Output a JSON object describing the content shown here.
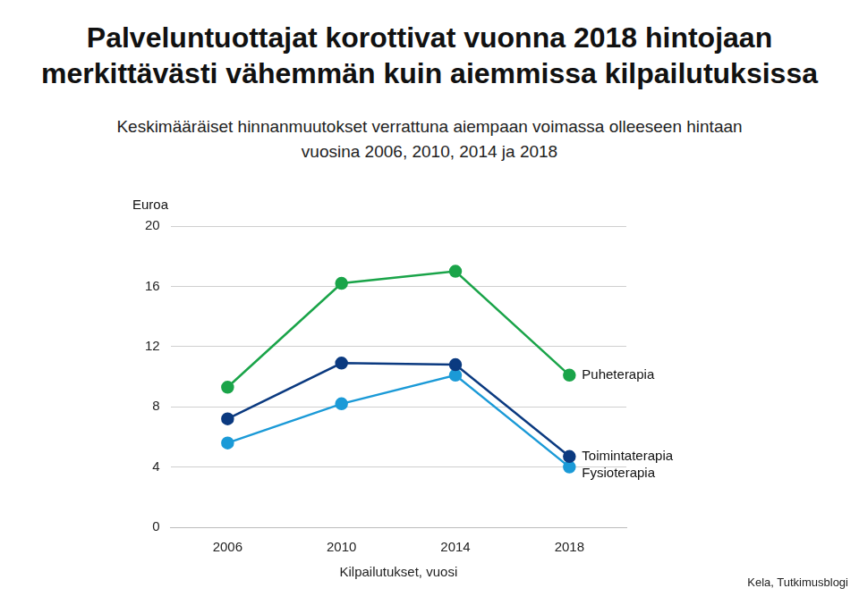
{
  "chart_data": {
    "type": "line",
    "title": [
      "Palveluntuottajat korottivat vuonna 2018 hintojaan",
      "merkittävästi vähemmän kuin aiemmissa kilpailutuksissa"
    ],
    "subtitle": [
      "Keskimääräiset hinnanmuutokset verrattuna aiempaan voimassa olleeseen hintaan",
      "vuosina 2006, 2010, 2014 ja 2018"
    ],
    "y_label": "Euroa",
    "x_label": "Kilpailutukset, vuosi",
    "source": "Kela, Tutkimusblogi",
    "categories": [
      "2006",
      "2010",
      "2014",
      "2018"
    ],
    "series": [
      {
        "name": "Puheterapia",
        "color": "#1aa449",
        "values": [
          9.3,
          16.2,
          17.0,
          10.1
        ]
      },
      {
        "name": "Toimintaterapia",
        "color": "#0b3a80",
        "values": [
          7.2,
          10.9,
          10.8,
          4.7
        ]
      },
      {
        "name": "Fysioterapia",
        "color": "#1b9ad7",
        "values": [
          5.6,
          8.2,
          10.1,
          4.0
        ]
      }
    ],
    "ylim": [
      0,
      20
    ],
    "yticks": [
      0,
      4,
      8,
      12,
      16,
      20
    ],
    "grid": true,
    "marker": "circle"
  }
}
